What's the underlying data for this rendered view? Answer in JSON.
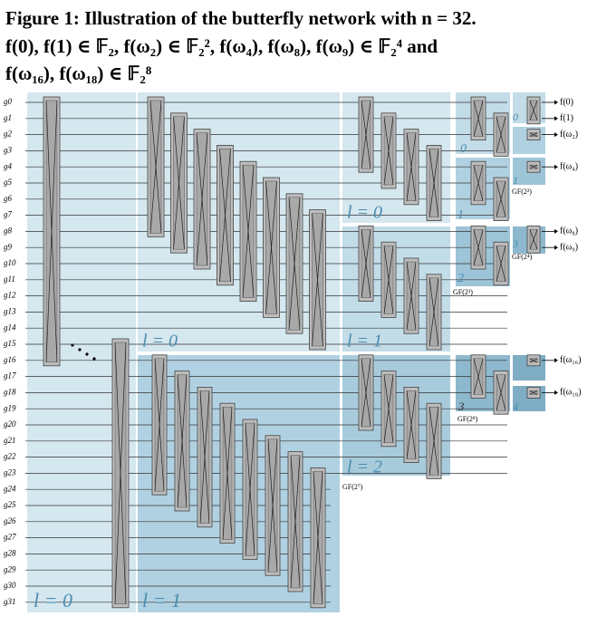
{
  "caption": {
    "lines": [
      "Figure 1: Illustration of the butterfly network with n = 32.",
      "f(0), f(1) ∈ 𝔽₂, f(ω₂) ∈ 𝔽₂², f(ω₄), f(ω₈), f(ω₉) ∈ 𝔽₂⁴ and",
      "f(ω₁₆), f(ω₁₈) ∈ 𝔽₂⁸"
    ]
  },
  "inputs": [
    "g0",
    "g1",
    "g2",
    "g3",
    "g4",
    "g5",
    "g6",
    "g7",
    "g8",
    "g9",
    "g10",
    "g11",
    "g12",
    "g13",
    "g14",
    "g15",
    "g16",
    "g17",
    "g18",
    "g19",
    "g20",
    "g21",
    "g22",
    "g23",
    "g24",
    "g25",
    "g26",
    "g27",
    "g28",
    "g29",
    "g30",
    "g31"
  ],
  "outputs": [
    "f(0)",
    "f(1)",
    "f(ω₂)",
    "f(ω₄)",
    "f(ω₈)",
    "f(ω₉)",
    "f(ω₁₆)",
    "f(ω₁₈)"
  ],
  "region_labels": [
    "l = 0",
    "l = 0",
    "l = 1",
    "l = 0",
    "l = 1",
    "l = 2",
    "0",
    "1",
    "2",
    "3",
    "0",
    "1",
    "3",
    "4"
  ],
  "field_labels": [
    "GF(2²)",
    "GF(2⁴)",
    "GF(2³)",
    "GF(2⁸)",
    "GF(2⁷)"
  ]
}
